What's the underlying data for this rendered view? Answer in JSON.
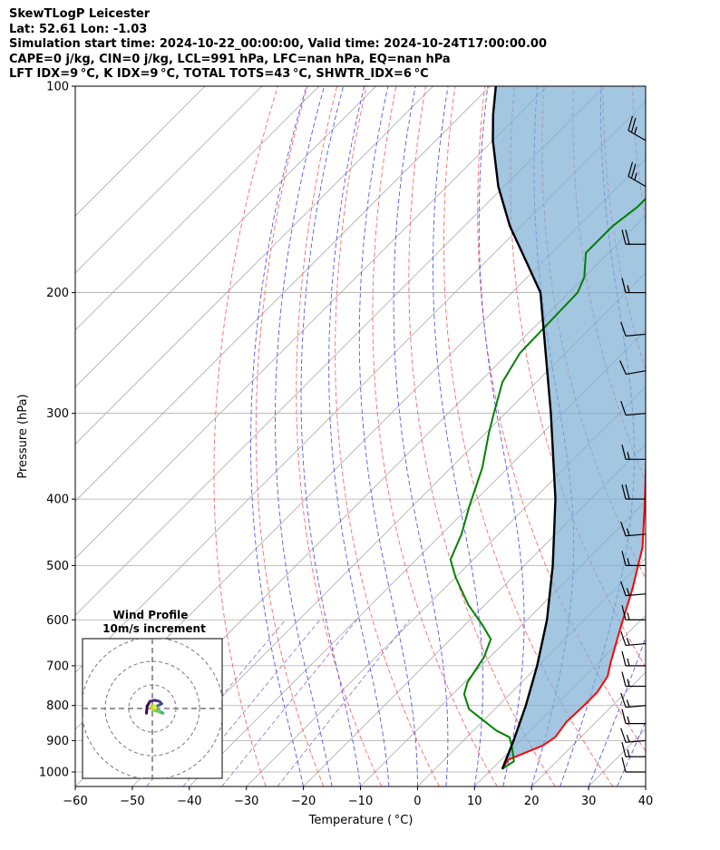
{
  "header": {
    "line1": "SkewTLogP Leicester",
    "line2": "Lat: 52.61   Lon: -1.03",
    "line3": "Simulation start time: 2024-10-22_00:00:00, Valid time: 2024-10-24T17:00:00.00",
    "line4": "CAPE=0 j/kg, CIN=0 j/kg, LCL=991 hPa, LFC=nan hPa, EQ=nan hPa",
    "line5": "LFT IDX=9 °C, K IDX=9 °C, TOTAL TOTS=43 °C, SHWTR_IDX=6 °C"
  },
  "colors": {
    "temperature": "#ff0000",
    "dewpoint": "#008000",
    "parcel": "#000000",
    "shade": "#7fb0d5",
    "dry_adiabat": "#ff6666",
    "moist_adiabat": "#5555ee",
    "mixing_ratio": "#9966cc",
    "isotherm": "#aaaaaa",
    "isobar": "#aaaaaa"
  },
  "chart_data": {
    "type": "line",
    "title": "",
    "xlabel": "Temperature ( °C)",
    "ylabel": "Pressure (hPa)",
    "xlim": [
      -60,
      40
    ],
    "ylim": [
      1050,
      100
    ],
    "y_scale": "log",
    "x_ticks": [
      "−60",
      "−50",
      "−40",
      "−30",
      "−20",
      "−10",
      "0",
      "10",
      "20",
      "30",
      "40"
    ],
    "y_ticks": [
      "100",
      "200",
      "300",
      "400",
      "500",
      "600",
      "700",
      "800",
      "900",
      "1000"
    ],
    "skew_deg": 45,
    "series": [
      {
        "key": "temperature",
        "name": "",
        "points": [
          [
            11.8,
            990
          ],
          [
            11.2,
            960
          ],
          [
            14.8,
            915
          ],
          [
            15.5,
            890
          ],
          [
            14.8,
            845
          ],
          [
            15.0,
            800
          ],
          [
            15.0,
            765
          ],
          [
            14.0,
            725
          ],
          [
            12.0,
            690
          ],
          [
            8.0,
            620
          ],
          [
            3.0,
            540
          ],
          [
            -2.5,
            470
          ],
          [
            -10.5,
            400
          ],
          [
            -18.0,
            345
          ],
          [
            -24.5,
            300
          ],
          [
            -28.0,
            270
          ],
          [
            -32.5,
            230
          ],
          [
            -36.5,
            200
          ],
          [
            -36.5,
            190
          ],
          [
            -37.0,
            180
          ],
          [
            -38.5,
            160
          ],
          [
            -39.5,
            140
          ],
          [
            -42.0,
            120
          ],
          [
            -44.5,
            110
          ],
          [
            -47.0,
            100
          ]
        ]
      },
      {
        "key": "dewpoint",
        "name": "",
        "points": [
          [
            11.8,
            990
          ],
          [
            12.5,
            965
          ],
          [
            10.0,
            925
          ],
          [
            7.5,
            890
          ],
          [
            4.0,
            870
          ],
          [
            -4.5,
            810
          ],
          [
            -8.0,
            770
          ],
          [
            -9.5,
            740
          ],
          [
            -11.0,
            680
          ],
          [
            -13.0,
            640
          ],
          [
            -17.0,
            610
          ],
          [
            -23.0,
            570
          ],
          [
            -30.0,
            520
          ],
          [
            -34.0,
            490
          ],
          [
            -36.5,
            450
          ],
          [
            -40.0,
            410
          ],
          [
            -44.5,
            360
          ],
          [
            -49.5,
            320
          ],
          [
            -52.0,
            300
          ],
          [
            -56.0,
            270
          ],
          [
            -58.0,
            245
          ],
          [
            -58.5,
            200
          ],
          [
            -60.0,
            190
          ],
          [
            -64.0,
            175
          ],
          [
            -64.0,
            160
          ],
          [
            -63.0,
            150
          ],
          [
            -63.0,
            135
          ],
          [
            -63.0,
            120
          ],
          [
            -63.0,
            110
          ],
          [
            -63.0,
            100
          ]
        ]
      },
      {
        "key": "parcel",
        "name": "",
        "points": [
          [
            11.8,
            990
          ],
          [
            8.8,
            900
          ],
          [
            4.8,
            800
          ],
          [
            -0.2,
            700
          ],
          [
            -6.5,
            600
          ],
          [
            -15.0,
            500
          ],
          [
            -26.2,
            400
          ],
          [
            -42.0,
            300
          ],
          [
            -65.0,
            200
          ],
          [
            -73.0,
            180
          ],
          [
            -82.0,
            160
          ],
          [
            -91.0,
            140
          ],
          [
            -100.0,
            120
          ],
          [
            -104.5,
            110
          ],
          [
            -109.0,
            100
          ]
        ]
      }
    ],
    "wind_barbs": [
      {
        "p": 1000,
        "speed_kt": 10,
        "dir_deg": 270
      },
      {
        "p": 950,
        "speed_kt": 15,
        "dir_deg": 270
      },
      {
        "p": 900,
        "speed_kt": 15,
        "dir_deg": 265
      },
      {
        "p": 850,
        "speed_kt": 15,
        "dir_deg": 270
      },
      {
        "p": 800,
        "speed_kt": 15,
        "dir_deg": 265
      },
      {
        "p": 750,
        "speed_kt": 15,
        "dir_deg": 270
      },
      {
        "p": 700,
        "speed_kt": 15,
        "dir_deg": 270
      },
      {
        "p": 650,
        "speed_kt": 15,
        "dir_deg": 265
      },
      {
        "p": 600,
        "speed_kt": 15,
        "dir_deg": 270
      },
      {
        "p": 550,
        "speed_kt": 15,
        "dir_deg": 265
      },
      {
        "p": 500,
        "speed_kt": 15,
        "dir_deg": 270
      },
      {
        "p": 450,
        "speed_kt": 15,
        "dir_deg": 265
      },
      {
        "p": 400,
        "speed_kt": 20,
        "dir_deg": 270
      },
      {
        "p": 350,
        "speed_kt": 15,
        "dir_deg": 270
      },
      {
        "p": 300,
        "speed_kt": 10,
        "dir_deg": 265
      },
      {
        "p": 260,
        "speed_kt": 10,
        "dir_deg": 260
      },
      {
        "p": 230,
        "speed_kt": 10,
        "dir_deg": 265
      },
      {
        "p": 200,
        "speed_kt": 15,
        "dir_deg": 270
      },
      {
        "p": 170,
        "speed_kt": 20,
        "dir_deg": 270
      },
      {
        "p": 140,
        "speed_kt": 25,
        "dir_deg": 300
      },
      {
        "p": 120,
        "speed_kt": 25,
        "dir_deg": 300
      }
    ],
    "hodograph": {
      "title": "Wind Profile",
      "subtitle": "10m/s increment",
      "ring_interval_ms": 10,
      "rings": 3,
      "points": [
        [
          -2.5,
          -2.0
        ],
        [
          -2.2,
          1.0
        ],
        [
          -1.0,
          3.0
        ],
        [
          1.0,
          3.5
        ],
        [
          3.0,
          3.0
        ],
        [
          4.0,
          2.0
        ],
        [
          3.0,
          1.5
        ],
        [
          2.0,
          1.0
        ],
        [
          1.5,
          0.5
        ],
        [
          2.0,
          -1.0
        ],
        [
          3.0,
          -1.2
        ],
        [
          4.5,
          -2.0
        ],
        [
          3.0,
          -1.5
        ],
        [
          1.5,
          -1.0
        ],
        [
          0.0,
          -0.5
        ],
        [
          -0.5,
          1.0
        ],
        [
          1.0,
          1.2
        ],
        [
          1.5,
          0.0
        ]
      ]
    }
  }
}
